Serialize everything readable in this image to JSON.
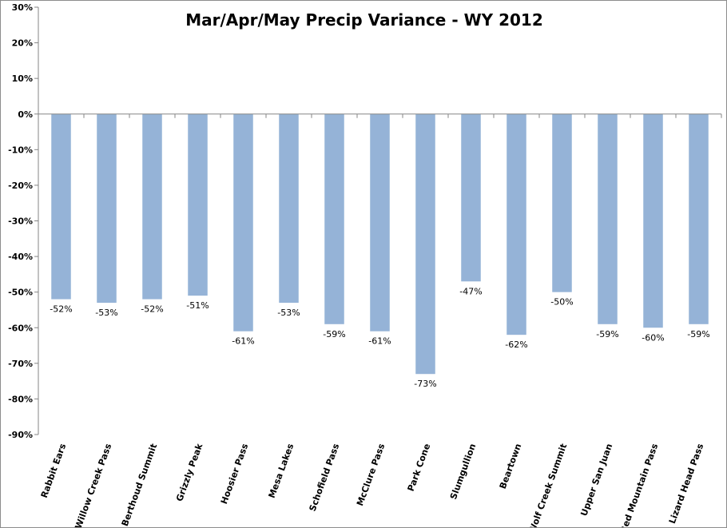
{
  "chart_data": {
    "type": "bar",
    "title": "Mar/Apr/May Precip Variance - WY 2012",
    "xlabel": "",
    "ylabel": "",
    "categories": [
      "Rabbit Ears",
      "Willow Creek Pass",
      "Berthoud Summit",
      "Grizzly Peak",
      "Hoosier Pass",
      "Mesa Lakes",
      "Schofield Pass",
      "McClure Pass",
      "Park Cone",
      "Slumgullion",
      "Beartown",
      "Wolf Creek Summit",
      "Upper San Juan",
      "Red Mountain Pass",
      "Lizard Head Pass"
    ],
    "values": [
      -52,
      -53,
      -52,
      -51,
      -61,
      -53,
      -59,
      -61,
      -73,
      -47,
      -62,
      -50,
      -59,
      -60,
      -59
    ],
    "data_labels": [
      "-52%",
      "-53%",
      "-52%",
      "-51%",
      "-61%",
      "-53%",
      "-59%",
      "-61%",
      "-73%",
      "-47%",
      "-62%",
      "-50%",
      "-59%",
      "-60%",
      "-59%"
    ],
    "ylim": [
      -90,
      30
    ],
    "yticks": [
      30,
      20,
      10,
      0,
      -10,
      -20,
      -30,
      -40,
      -50,
      -60,
      -70,
      -80,
      -90
    ],
    "ytick_labels": [
      "30%",
      "20%",
      "10%",
      "0%",
      "-10%",
      "-20%",
      "-30%",
      "-40%",
      "-50%",
      "-60%",
      "-70%",
      "-80%",
      "-90%"
    ],
    "grid": false,
    "legend": "none",
    "bar_color": "#95b3d7"
  }
}
